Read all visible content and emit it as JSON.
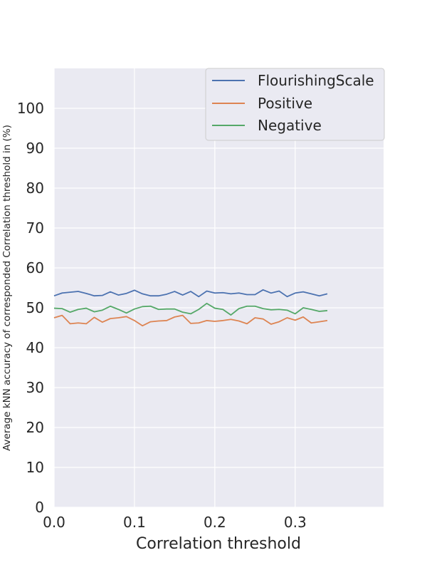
{
  "chart_data": {
    "type": "line",
    "title": "",
    "xlabel": "Correlation threshold",
    "ylabel": "Average kNN accuracy of corresponded Correlation threshold in (%)",
    "xlim": [
      0.0,
      0.41
    ],
    "ylim": [
      0,
      110
    ],
    "xticks": [
      0.0,
      0.1,
      0.2,
      0.3
    ],
    "xtick_labels": [
      "0.0",
      "0.1",
      "0.2",
      "0.3"
    ],
    "yticks": [
      0,
      10,
      20,
      30,
      40,
      50,
      60,
      70,
      80,
      90,
      100
    ],
    "ytick_labels": [
      "0",
      "10",
      "20",
      "30",
      "40",
      "50",
      "60",
      "70",
      "80",
      "90",
      "100"
    ],
    "grid": true,
    "legend_position": "top-right",
    "x": [
      0.0,
      0.01,
      0.02,
      0.03,
      0.04,
      0.05,
      0.06,
      0.07,
      0.08,
      0.09,
      0.1,
      0.11,
      0.12,
      0.13,
      0.14,
      0.15,
      0.16,
      0.17,
      0.18,
      0.19,
      0.2,
      0.21,
      0.22,
      0.23,
      0.24,
      0.25,
      0.26,
      0.27,
      0.28,
      0.29,
      0.3,
      0.31,
      0.32,
      0.33,
      0.34
    ],
    "series": [
      {
        "name": "FlourishingScale",
        "color": "#4c72b0",
        "values": [
          53.0,
          53.7,
          53.9,
          54.1,
          53.6,
          53.0,
          53.1,
          54.0,
          53.2,
          53.6,
          54.4,
          53.5,
          53.0,
          53.0,
          53.4,
          54.1,
          53.2,
          54.1,
          52.8,
          54.2,
          53.7,
          53.8,
          53.5,
          53.7,
          53.3,
          53.3,
          54.5,
          53.7,
          54.2,
          52.8,
          53.7,
          54.0,
          53.5,
          53.0,
          53.5
        ]
      },
      {
        "name": "Positive",
        "color": "#dd8452",
        "values": [
          47.5,
          48.1,
          46.0,
          46.2,
          46.0,
          47.6,
          46.4,
          47.3,
          47.5,
          47.8,
          46.8,
          45.5,
          46.5,
          46.7,
          46.8,
          47.7,
          48.1,
          46.1,
          46.2,
          46.8,
          46.6,
          46.8,
          47.1,
          46.7,
          46.0,
          47.5,
          47.2,
          45.9,
          46.5,
          47.5,
          46.9,
          47.7,
          46.2,
          46.5,
          46.8
        ]
      },
      {
        "name": "Negative",
        "color": "#55a868",
        "values": [
          49.9,
          49.8,
          48.9,
          49.6,
          49.9,
          49.0,
          49.4,
          50.4,
          49.6,
          48.7,
          49.7,
          50.3,
          50.4,
          49.6,
          49.7,
          49.7,
          48.9,
          48.5,
          49.6,
          51.1,
          49.9,
          49.6,
          48.2,
          49.8,
          50.4,
          50.4,
          49.8,
          49.5,
          49.6,
          49.4,
          48.5,
          50.0,
          49.6,
          49.1,
          49.3
        ]
      }
    ]
  }
}
